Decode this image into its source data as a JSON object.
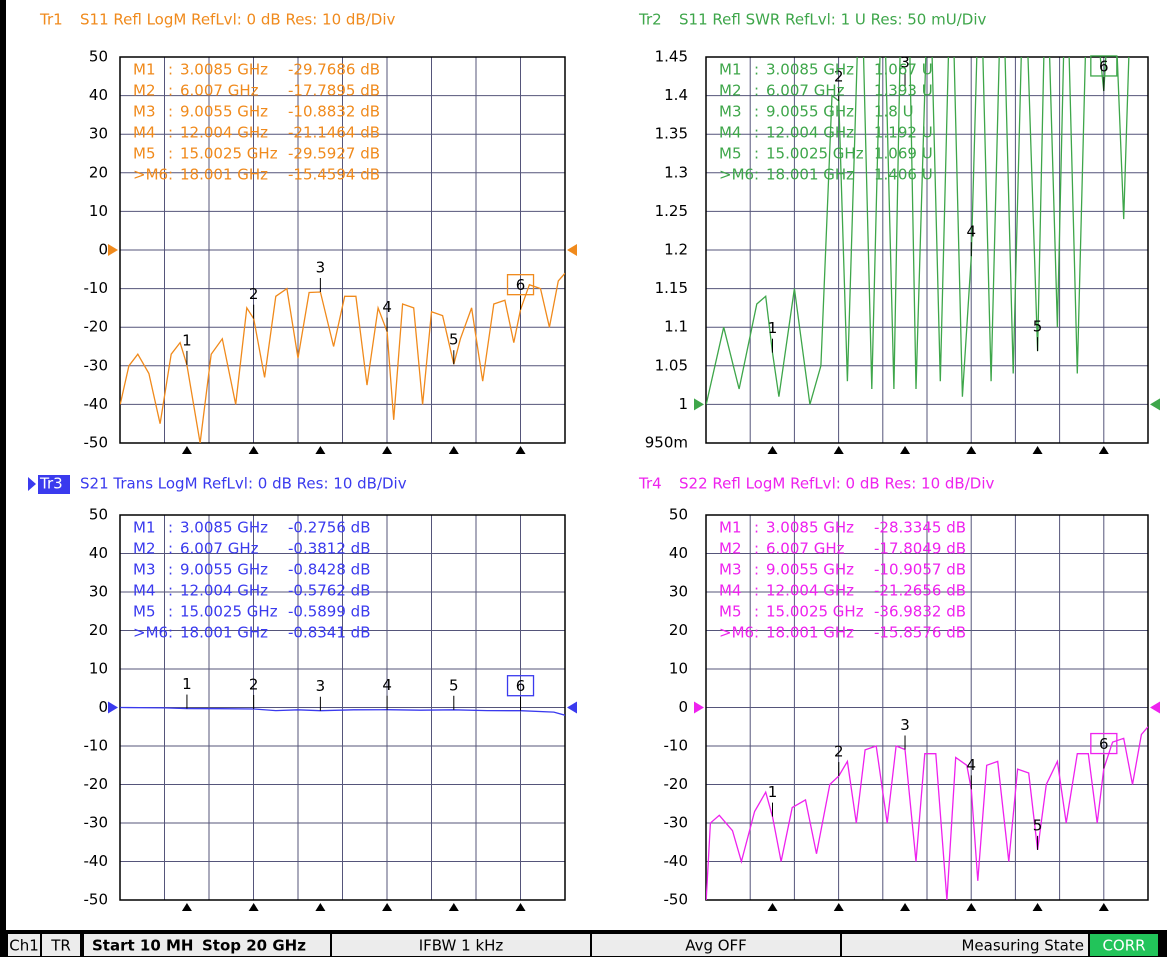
{
  "chart_data": [
    {
      "type": "line",
      "trace": "Tr1",
      "title": "S11 Refl LogM RefLvl: 0  dB Res: 10  dB/Div",
      "color": "#f08a1c",
      "active": false,
      "x": [
        0.01,
        0.4,
        0.8,
        1.3,
        1.8,
        2.3,
        2.7,
        3.0085,
        3.6,
        4.1,
        4.6,
        5.2,
        5.7,
        6.007,
        6.5,
        7.0,
        7.5,
        8.0,
        8.5,
        9.0055,
        9.6,
        10.1,
        10.6,
        11.1,
        11.6,
        12.004,
        12.3,
        12.7,
        13.2,
        13.6,
        14.0,
        14.5,
        15.0025,
        15.3,
        15.8,
        16.3,
        16.8,
        17.3,
        17.7,
        18.001,
        18.4,
        18.9,
        19.3,
        19.7,
        20
      ],
      "values": [
        -40,
        -30,
        -27,
        -32,
        -45,
        -27,
        -24,
        -29.7686,
        -50,
        -27,
        -23,
        -40,
        -15,
        -17.7895,
        -33,
        -12,
        -10,
        -28,
        -11,
        -10.8832,
        -25,
        -12,
        -12,
        -35,
        -15,
        -21.1464,
        -44,
        -14,
        -15,
        -40,
        -16,
        -17,
        -29.5927,
        -23,
        -15,
        -34,
        -14,
        -13,
        -24,
        -15.4594,
        -9,
        -10,
        -20,
        -8,
        -6
      ],
      "xlim": [
        0,
        20
      ],
      "xticks": [
        0,
        2,
        4,
        6,
        8,
        10,
        12,
        14,
        16,
        18,
        20
      ],
      "ylim": [
        -50,
        50
      ],
      "yticks": [
        50,
        40,
        30,
        20,
        10,
        0,
        -10,
        -20,
        -30,
        -40,
        -50
      ],
      "ref": 0,
      "grid": true,
      "markers": {
        "labels": [
          "1",
          "2",
          "3",
          "4",
          "5",
          "6"
        ],
        "x": [
          3.0085,
          6.007,
          9.0055,
          12.004,
          15.0025,
          18.001
        ],
        "values": [
          -29.7686,
          -17.7895,
          -10.8832,
          -21.1464,
          -29.5927,
          -15.4594
        ]
      },
      "readout": [
        [
          "M1",
          ":",
          "3.0085 GHz",
          "-29.7686  dB"
        ],
        [
          "M2",
          ":",
          "6.007 GHz",
          "-17.7895  dB"
        ],
        [
          "M3",
          ":",
          "9.0055 GHz",
          "-10.8832  dB"
        ],
        [
          "M4",
          ":",
          "12.004 GHz",
          "-21.1464  dB"
        ],
        [
          "M5",
          ":",
          "15.0025 GHz",
          "-29.5927  dB"
        ],
        [
          ">M6",
          ":",
          "18.001 GHz",
          "-15.4594  dB"
        ]
      ]
    },
    {
      "type": "line",
      "trace": "Tr2",
      "title": "S11 Refl SWR RefLvl: 1  U Res: 50 mU/Div",
      "color": "#3ea64a",
      "active": false,
      "x": [
        0.01,
        0.8,
        1.5,
        2.3,
        2.7,
        3.0085,
        3.3,
        4.0,
        4.7,
        5.2,
        5.7,
        6.007,
        6.4,
        7.0,
        7.5,
        8.0,
        8.5,
        9.0055,
        9.5,
        10.1,
        10.6,
        11.1,
        11.6,
        12.004,
        12.4,
        12.9,
        13.4,
        13.9,
        14.4,
        15.0025,
        15.4,
        15.9,
        16.3,
        16.8,
        17.3,
        18.001,
        18.4,
        18.9,
        19.3,
        20
      ],
      "values": [
        1.0,
        1.1,
        1.02,
        1.13,
        1.14,
        1.067,
        1.01,
        1.15,
        1.0,
        1.05,
        1.4,
        1.393,
        1.03,
        1.6,
        1.02,
        1.6,
        1.02,
        1.8,
        1.02,
        1.6,
        1.03,
        1.6,
        1.01,
        1.192,
        1.6,
        1.03,
        1.6,
        1.04,
        1.6,
        1.069,
        1.6,
        1.1,
        1.6,
        1.04,
        1.6,
        1.406,
        1.6,
        1.24,
        1.6,
        1.45
      ],
      "xlim": [
        0,
        20
      ],
      "xticks": [
        0,
        2,
        4,
        6,
        8,
        10,
        12,
        14,
        16,
        18,
        20
      ],
      "ylim": [
        0.95,
        1.45
      ],
      "yticks": [
        1.45,
        1.4,
        1.35,
        1.3,
        1.25,
        1.2,
        1.15,
        1.1,
        1.05,
        1,
        {
          "value": 0.95,
          "label": "950m"
        }
      ],
      "ref": 1,
      "grid": true,
      "markers": {
        "labels": [
          "1",
          "2",
          "3",
          "4",
          "5",
          "6"
        ],
        "x": [
          3.0085,
          6.007,
          9.0055,
          12.004,
          15.0025,
          18.001
        ],
        "values": [
          1.067,
          1.393,
          1.8,
          1.192,
          1.069,
          1.406
        ]
      },
      "readout": [
        [
          "M1",
          ":",
          "3.0085 GHz",
          "1.067  U"
        ],
        [
          "M2",
          ":",
          "6.007 GHz",
          "1.393  U"
        ],
        [
          "M3",
          ":",
          "9.0055 GHz",
          "1.8  U"
        ],
        [
          "M4",
          ":",
          "12.004 GHz",
          "1.192  U"
        ],
        [
          "M5",
          ":",
          "15.0025 GHz",
          "1.069  U"
        ],
        [
          ">M6",
          ":",
          "18.001 GHz",
          "1.406  U"
        ]
      ]
    },
    {
      "type": "line",
      "trace": "Tr3",
      "title": "S21 Trans LogM RefLvl: 0  dB Res: 10  dB/Div",
      "color": "#3a3aee",
      "active": true,
      "x": [
        0.01,
        2,
        3.0085,
        4.5,
        6.007,
        7,
        8,
        9.0055,
        10.5,
        12.004,
        13.5,
        15.0025,
        16.5,
        18.001,
        19.5,
        20
      ],
      "values": [
        0,
        -0.1,
        -0.2756,
        -0.3,
        -0.3812,
        -0.8,
        -0.6,
        -0.8428,
        -0.6,
        -0.5762,
        -0.7,
        -0.5899,
        -0.8,
        -0.8341,
        -1.2,
        -2
      ],
      "xlim": [
        0,
        20
      ],
      "xticks": [
        0,
        2,
        4,
        6,
        8,
        10,
        12,
        14,
        16,
        18,
        20
      ],
      "ylim": [
        -50,
        50
      ],
      "yticks": [
        50,
        40,
        30,
        20,
        10,
        0,
        -10,
        -20,
        -30,
        -40,
        -50
      ],
      "ref": 0,
      "grid": true,
      "markers": {
        "labels": [
          "1",
          "2",
          "3",
          "4",
          "5",
          "6"
        ],
        "x": [
          3.0085,
          6.007,
          9.0055,
          12.004,
          15.0025,
          18.001
        ],
        "values": [
          -0.2756,
          -0.3812,
          -0.8428,
          -0.5762,
          -0.5899,
          -0.8341
        ]
      },
      "readout": [
        [
          "M1",
          ":",
          "3.0085 GHz",
          "-0.2756  dB"
        ],
        [
          "M2",
          ":",
          "6.007 GHz",
          "-0.3812  dB"
        ],
        [
          "M3",
          ":",
          "9.0055 GHz",
          "-0.8428  dB"
        ],
        [
          "M4",
          ":",
          "12.004 GHz",
          "-0.5762  dB"
        ],
        [
          "M5",
          ":",
          "15.0025 GHz",
          "-0.5899  dB"
        ],
        [
          ">M6",
          ":",
          "18.001 GHz",
          "-0.8341  dB"
        ]
      ]
    },
    {
      "type": "line",
      "trace": "Tr4",
      "title": "S22 Refl LogM RefLvl: 0  dB Res: 10  dB/Div",
      "color": "#ee22ee",
      "active": false,
      "x": [
        0.01,
        0.2,
        0.6,
        1.2,
        1.6,
        2.2,
        2.7,
        3.0085,
        3.4,
        3.9,
        4.5,
        5.0,
        5.6,
        6.007,
        6.4,
        6.8,
        7.2,
        7.7,
        8.2,
        8.6,
        9.0055,
        9.5,
        9.9,
        10.4,
        10.9,
        11.3,
        11.8,
        12.004,
        12.3,
        12.7,
        13.2,
        13.7,
        14.1,
        14.6,
        15.0025,
        15.4,
        15.9,
        16.3,
        16.8,
        17.3,
        17.7,
        18.001,
        18.4,
        18.9,
        19.3,
        19.7,
        20
      ],
      "values": [
        -50,
        -30,
        -28,
        -32,
        -40,
        -27,
        -22,
        -28.3345,
        -40,
        -26,
        -24,
        -38,
        -20,
        -17.8049,
        -14,
        -30,
        -11,
        -10,
        -30,
        -10,
        -10.9057,
        -40,
        -12,
        -12,
        -50,
        -13,
        -15,
        -21.2656,
        -45,
        -15,
        -14,
        -40,
        -16,
        -17,
        -36.9832,
        -20,
        -14,
        -30,
        -12,
        -12,
        -30,
        -15.8576,
        -9,
        -8,
        -20,
        -7,
        -5
      ],
      "xlim": [
        0,
        20
      ],
      "xticks": [
        0,
        2,
        4,
        6,
        8,
        10,
        12,
        14,
        16,
        18,
        20
      ],
      "ylim": [
        -50,
        50
      ],
      "yticks": [
        50,
        40,
        30,
        20,
        10,
        0,
        -10,
        -20,
        -30,
        -40,
        -50
      ],
      "ref": 0,
      "grid": true,
      "markers": {
        "labels": [
          "1",
          "2",
          "3",
          "4",
          "5",
          "6"
        ],
        "x": [
          3.0085,
          6.007,
          9.0055,
          12.004,
          15.0025,
          18.001
        ],
        "values": [
          -28.3345,
          -17.8049,
          -10.9057,
          -21.2656,
          -36.9832,
          -15.8576
        ]
      },
      "readout": [
        [
          "M1",
          ":",
          "3.0085 GHz",
          "-28.3345  dB"
        ],
        [
          "M2",
          ":",
          "6.007 GHz",
          "-17.8049  dB"
        ],
        [
          "M3",
          ":",
          "9.0055 GHz",
          "-10.9057  dB"
        ],
        [
          "M4",
          ":",
          "12.004 GHz",
          "-21.2656  dB"
        ],
        [
          "M5",
          ":",
          "15.0025 GHz",
          "-36.9832  dB"
        ],
        [
          ">M6",
          ":",
          "18.001 GHz",
          "-15.8576  dB"
        ]
      ]
    }
  ],
  "status_bar": [
    "Ch1",
    "TR",
    "Start 10 MHz",
    "Stop 20 GHz",
    "IFBW 1 kHz",
    "Avg OFF",
    "Measuring State",
    "CORR"
  ]
}
